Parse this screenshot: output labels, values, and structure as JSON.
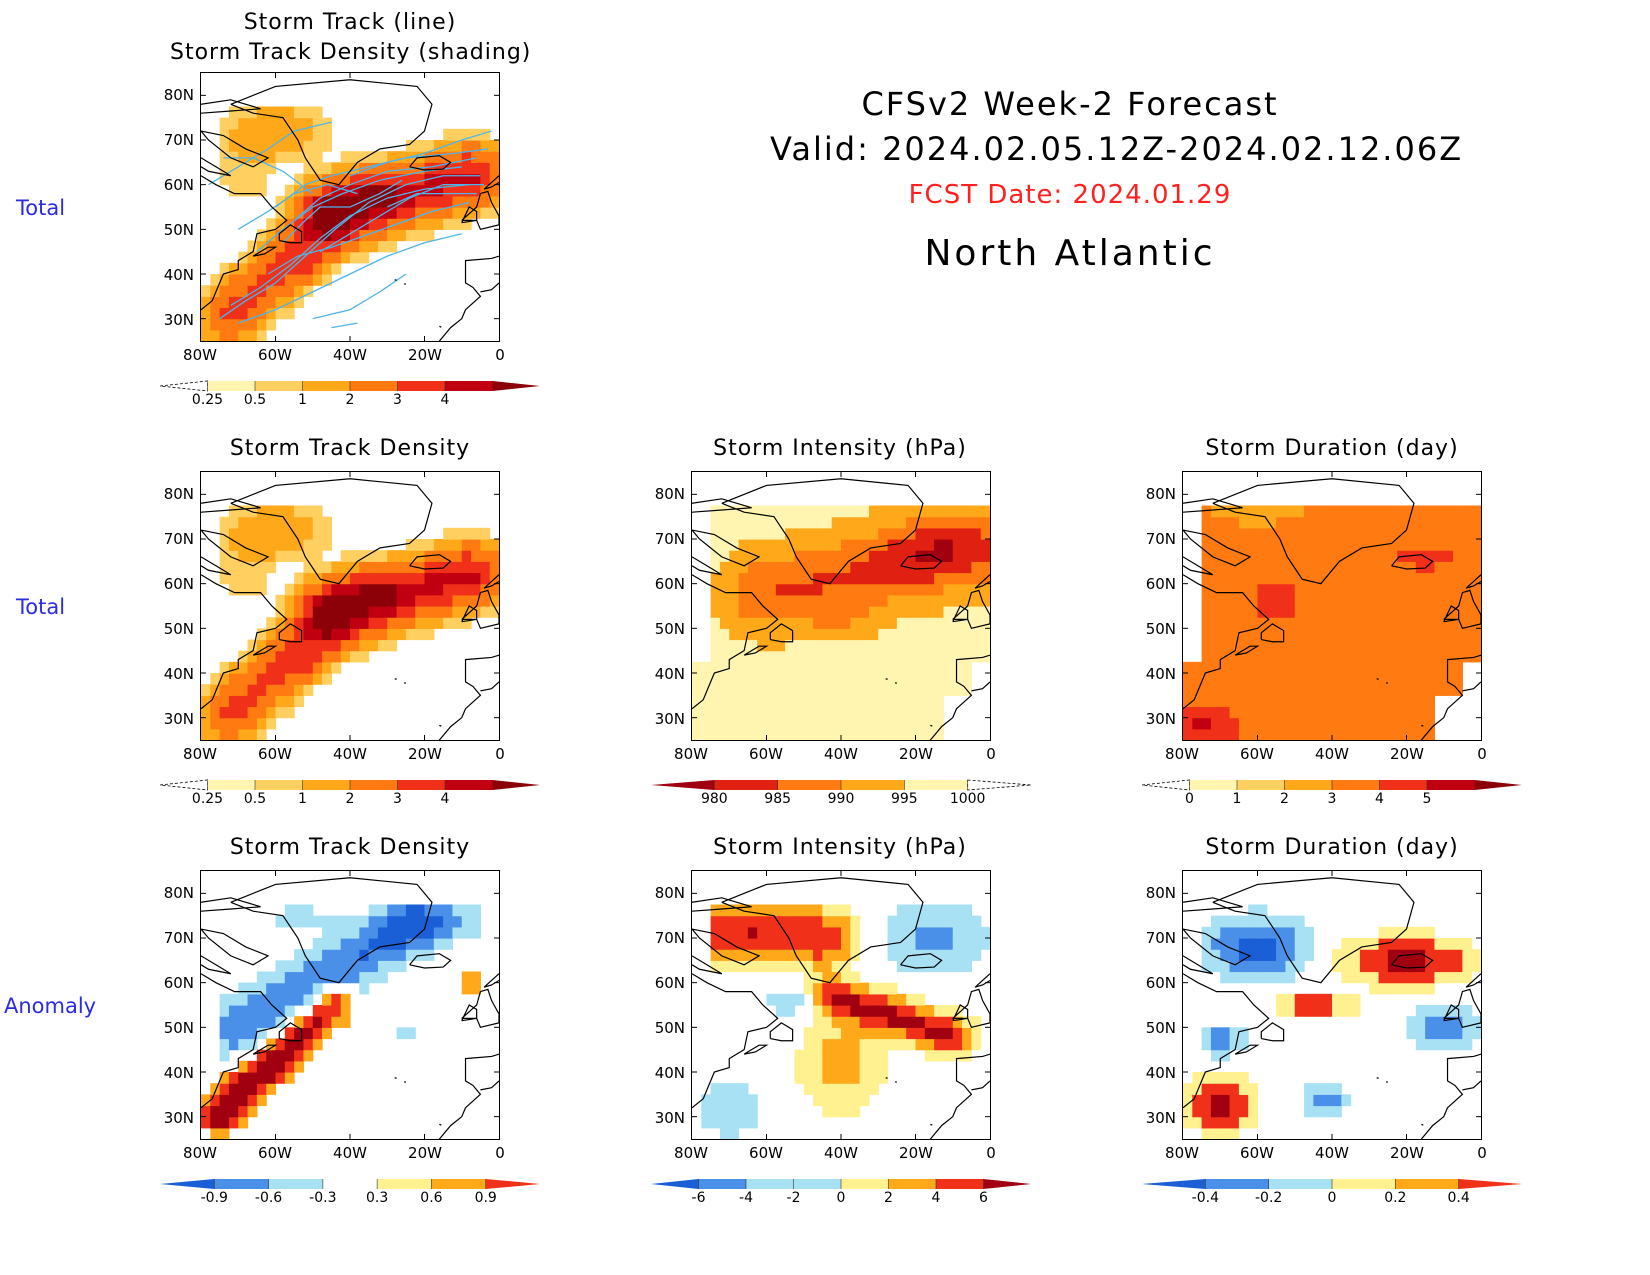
{
  "header": {
    "title_line1": "CFSv2 Week-2 Forecast",
    "title_line2": "Valid: 2024.02.05.12Z-2024.02.12.06Z",
    "fcst_date": "FCST Date: 2024.01.29",
    "region": "North Atlantic"
  },
  "row_labels": {
    "row1": "Total",
    "row2": "Total",
    "row3": "Anomaly"
  },
  "axes": {
    "lat_labels": [
      "80N",
      "70N",
      "60N",
      "50N",
      "40N",
      "30N"
    ],
    "lon_labels": [
      "80W",
      "60W",
      "40W",
      "20W",
      "0"
    ]
  },
  "colors": {
    "seq": [
      "#fff5b0",
      "#ffd060",
      "#ffa81a",
      "#ff7a10",
      "#f03018",
      "#c00010",
      "#8c0008"
    ],
    "div_neg": [
      "#1a5fd6",
      "#4a90e8",
      "#a8e0f4"
    ],
    "div_pos": [
      "#fff090",
      "#ffa81a",
      "#f03018",
      "#a00010"
    ],
    "track_line": "#4fb4e8",
    "text_label": "#2a2ae8",
    "fcst_red": "#ff2020"
  },
  "chart_data": [
    {
      "id": "p11",
      "type": "heatmap",
      "title": "Storm Track (line)\nStorm Track Density (shading)",
      "title_line1": "Storm Track (line)",
      "title_line2": "Storm Track Density (shading)",
      "xrange": [
        -80,
        0
      ],
      "yrange": [
        25,
        85
      ],
      "colorbar": {
        "labels": [
          "0.25",
          "0.5",
          "1",
          "2",
          "3",
          "4"
        ],
        "levels": [
          0.25,
          0.5,
          1,
          2,
          3,
          4
        ]
      },
      "field": "density",
      "has_tracks": true
    },
    {
      "id": "p21",
      "type": "heatmap",
      "title": "Storm Track Density",
      "xrange": [
        -80,
        0
      ],
      "yrange": [
        25,
        85
      ],
      "colorbar": {
        "labels": [
          "0.25",
          "0.5",
          "1",
          "2",
          "3",
          "4"
        ],
        "levels": [
          0.25,
          0.5,
          1,
          2,
          3,
          4
        ]
      },
      "field": "density"
    },
    {
      "id": "p22",
      "type": "heatmap",
      "title": "Storm Intensity (hPa)",
      "xrange": [
        -80,
        0
      ],
      "yrange": [
        25,
        85
      ],
      "colorbar": {
        "labels": [
          "980",
          "985",
          "990",
          "995",
          "1000"
        ],
        "levels": [
          980,
          985,
          990,
          995,
          1000
        ]
      },
      "field": "intensity"
    },
    {
      "id": "p23",
      "type": "heatmap",
      "title": "Storm Duration (day)",
      "xrange": [
        -80,
        0
      ],
      "yrange": [
        25,
        85
      ],
      "colorbar": {
        "labels": [
          "0",
          "1",
          "2",
          "3",
          "4",
          "5"
        ],
        "levels": [
          0,
          1,
          2,
          3,
          4,
          5
        ]
      },
      "field": "duration"
    },
    {
      "id": "p31",
      "type": "heatmap",
      "title": "Storm Track Density",
      "xrange": [
        -80,
        0
      ],
      "yrange": [
        25,
        85
      ],
      "colorbar": {
        "labels": [
          "-0.9",
          "-0.6",
          "-0.3",
          "0.3",
          "0.6",
          "0.9"
        ],
        "levels": [
          -0.9,
          -0.6,
          -0.3,
          0.3,
          0.6,
          0.9
        ]
      },
      "field": "density_anom"
    },
    {
      "id": "p32",
      "type": "heatmap",
      "title": "Storm Intensity (hPa)",
      "xrange": [
        -80,
        0
      ],
      "yrange": [
        25,
        85
      ],
      "colorbar": {
        "labels": [
          "-6",
          "-4",
          "-2",
          "0",
          "2",
          "4",
          "6"
        ],
        "levels": [
          -6,
          -4,
          -2,
          0,
          2,
          4,
          6
        ]
      },
      "field": "intensity_anom"
    },
    {
      "id": "p33",
      "type": "heatmap",
      "title": "Storm Duration (day)",
      "xrange": [
        -80,
        0
      ],
      "yrange": [
        25,
        85
      ],
      "colorbar": {
        "labels": [
          "-0.4",
          "-0.2",
          "0",
          "0.2",
          "0.4"
        ],
        "levels": [
          -0.4,
          -0.2,
          0,
          0.2,
          0.4
        ]
      },
      "field": "duration_anom"
    }
  ]
}
